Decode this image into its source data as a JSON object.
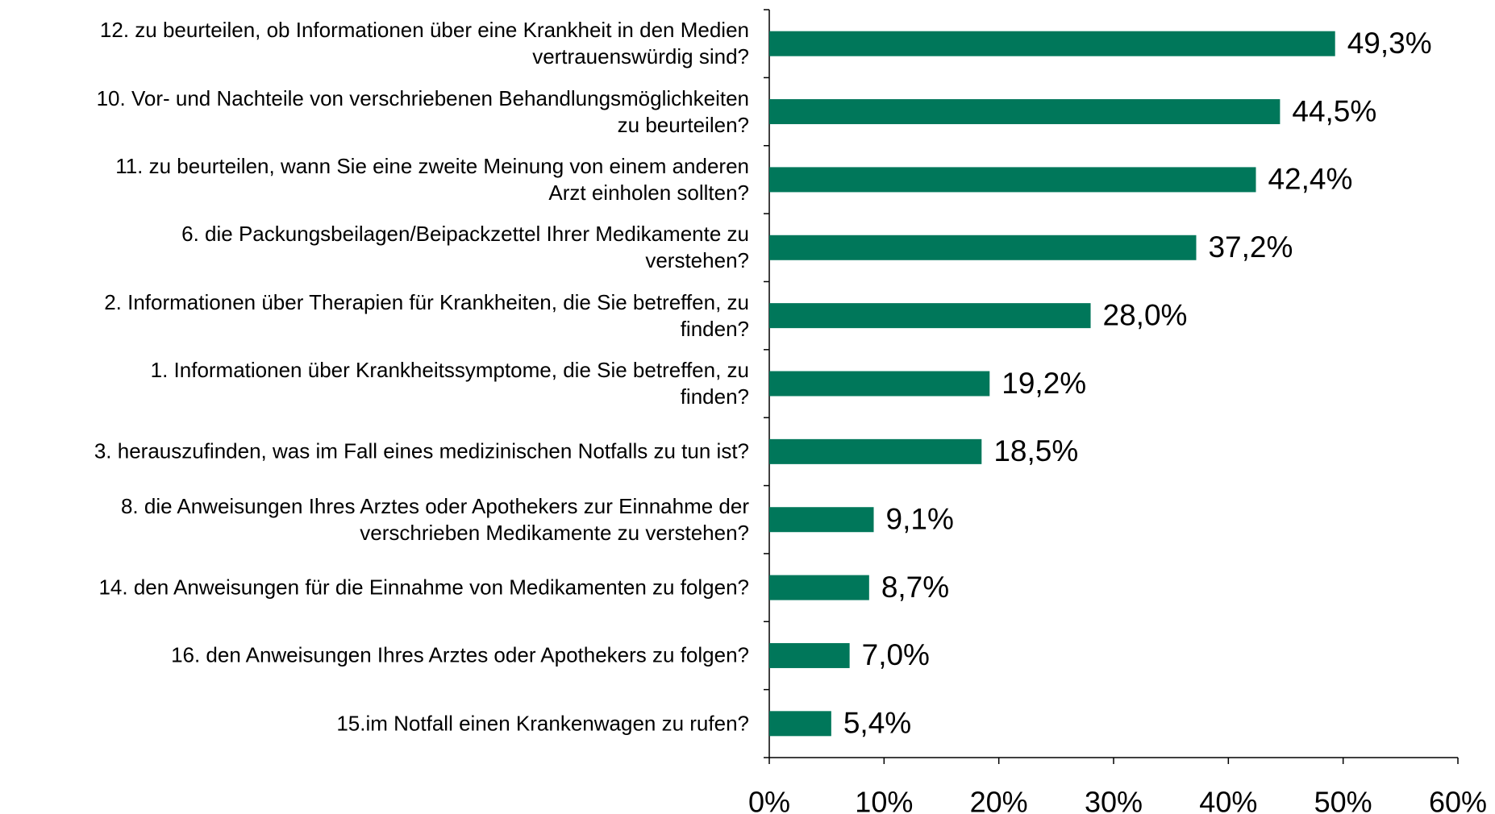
{
  "chart_data": {
    "type": "bar",
    "orientation": "horizontal",
    "categories": [
      "12. zu beurteilen, ob Informationen über eine Krankheit in den Medien\nvertrauenswürdig sind?",
      "10. Vor- und Nachteile von verschriebenen Behandlungsmöglichkeiten\nzu beurteilen?",
      "11. zu beurteilen, wann Sie eine zweite Meinung von einem anderen\nArzt einholen sollten?",
      "6. die Packungsbeilagen/Beipackzettel Ihrer Medikamente zu\nverstehen?",
      "2. Informationen über Therapien für Krankheiten, die Sie betreffen, zu\nfinden?",
      "1. Informationen über Krankheitssymptome, die Sie betreffen, zu\nfinden?",
      "3. herauszufinden, was im Fall eines medizinischen Notfalls zu tun ist?",
      "8. die Anweisungen Ihres Arztes oder Apothekers zur Einnahme der\nverschrieben Medikamente zu verstehen?",
      "14. den Anweisungen für die Einnahme von Medikamenten zu folgen?",
      "16. den Anweisungen Ihres Arztes oder Apothekers zu folgen?",
      "15.im Notfall einen Krankenwagen zu rufen?"
    ],
    "values": [
      49.3,
      44.5,
      42.4,
      37.2,
      28.0,
      19.2,
      18.5,
      9.1,
      8.7,
      7.0,
      5.4
    ],
    "value_labels": [
      "49,3%",
      "44,5%",
      "42,4%",
      "37,2%",
      "28,0%",
      "19,2%",
      "18,5%",
      "9,1%",
      "8,7%",
      "7,0%",
      "5,4%"
    ],
    "color": "#00775a",
    "xlim": [
      0,
      60
    ],
    "xticks": [
      {
        "value": 0,
        "label": "0%"
      },
      {
        "value": 10,
        "label": "10%"
      },
      {
        "value": 20,
        "label": "20%"
      },
      {
        "value": 30,
        "label": "30%"
      },
      {
        "value": 40,
        "label": "40%"
      },
      {
        "value": 50,
        "label": "50%"
      },
      {
        "value": 60,
        "label": "60%"
      }
    ]
  }
}
